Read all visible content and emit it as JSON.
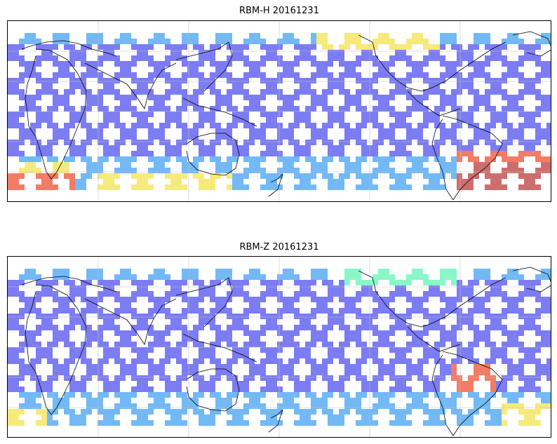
{
  "panels": [
    {
      "title": "RBM-H 20161231",
      "palette": {
        "low": "#6a6af2",
        "mid_low": "#5fb0f5",
        "mid": "#7af7c2",
        "mid_high": "#f5e86a",
        "high": "#f26a52",
        "max": "#c85a5a"
      }
    },
    {
      "title": "RBM-Z 20161231",
      "palette": {
        "low": "#6a6af2",
        "mid_low": "#5fb0f5",
        "mid": "#7af7c2",
        "mid_high": "#f5e86a",
        "high": "#f26a52",
        "max": "#c85a5a"
      }
    }
  ]
}
